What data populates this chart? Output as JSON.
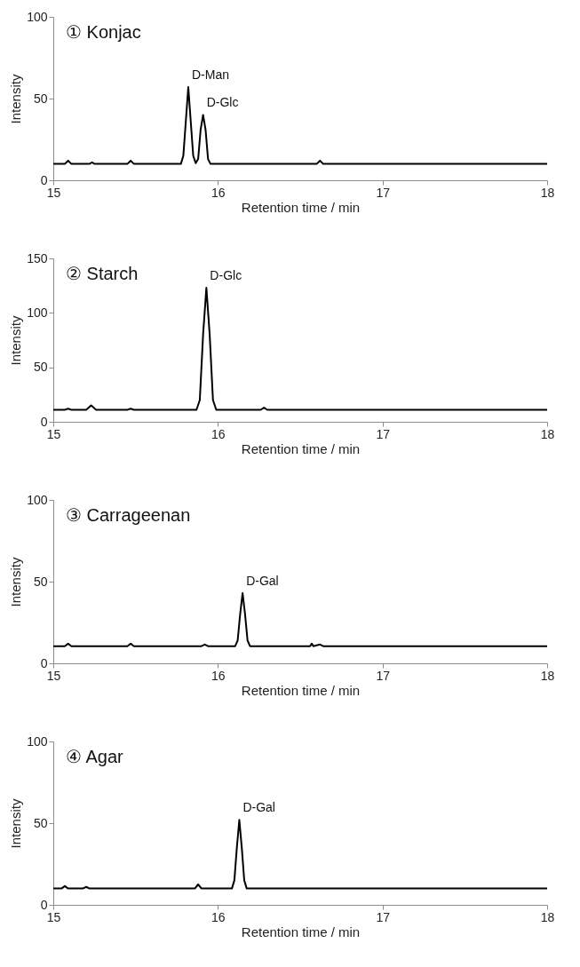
{
  "chart_data": [
    {
      "type": "line",
      "title": "① Konjac",
      "xlabel": "Retention time / min",
      "ylabel": "Intensity",
      "xlim": [
        15,
        18
      ],
      "xticks": [
        15,
        16,
        17,
        18
      ],
      "ylim": [
        0,
        100
      ],
      "yticks": [
        0,
        50,
        100
      ],
      "grid": false,
      "annotations": [
        {
          "text": "D-Man",
          "x": 15.82,
          "y": 57
        },
        {
          "text": "D-Glc",
          "x": 15.91,
          "y": 40
        }
      ],
      "series": [
        {
          "color": "#000000",
          "x": [
            15,
            15.07,
            15.09,
            15.11,
            15.22,
            15.235,
            15.25,
            15.45,
            15.47,
            15.49,
            15.775,
            15.79,
            15.805,
            15.82,
            15.835,
            15.85,
            15.865,
            15.88,
            15.895,
            15.91,
            15.925,
            15.94,
            15.955,
            16.6,
            16.62,
            16.64,
            18
          ],
          "values": [
            10,
            10,
            12,
            10,
            10,
            11,
            10,
            10,
            12,
            10,
            10,
            15,
            36,
            57,
            36,
            15,
            10.5,
            13,
            31,
            40,
            31,
            13,
            10,
            10,
            12,
            10,
            10
          ]
        }
      ]
    },
    {
      "type": "line",
      "title": "② Starch",
      "xlabel": "Retention time / min",
      "ylabel": "Intensity",
      "xlim": [
        15,
        18
      ],
      "xticks": [
        15,
        16,
        17,
        18
      ],
      "ylim": [
        0,
        150
      ],
      "yticks": [
        0,
        50,
        100,
        150
      ],
      "grid": false,
      "annotations": [
        {
          "text": "D-Glc",
          "x": 15.93,
          "y": 123
        }
      ],
      "series": [
        {
          "color": "#000000",
          "x": [
            15,
            15.07,
            15.09,
            15.11,
            15.2,
            15.23,
            15.26,
            15.45,
            15.47,
            15.49,
            15.87,
            15.89,
            15.91,
            15.93,
            15.95,
            15.97,
            15.99,
            16.26,
            16.28,
            16.3,
            18
          ],
          "values": [
            11,
            11,
            12,
            11,
            11,
            15,
            11,
            11,
            12,
            11,
            11,
            20,
            80,
            123,
            80,
            20,
            11,
            11,
            13,
            11,
            11
          ]
        }
      ]
    },
    {
      "type": "line",
      "title": "③ Carrageenan",
      "xlabel": "Retention time / min",
      "ylabel": "Intensity",
      "xlim": [
        15,
        18
      ],
      "xticks": [
        15,
        16,
        17,
        18
      ],
      "ylim": [
        0,
        100
      ],
      "yticks": [
        0,
        50,
        100
      ],
      "grid": false,
      "annotations": [
        {
          "text": "D-Gal",
          "x": 16.15,
          "y": 43
        }
      ],
      "series": [
        {
          "color": "#000000",
          "x": [
            15,
            15.07,
            15.09,
            15.11,
            15.45,
            15.47,
            15.49,
            15.9,
            15.92,
            15.94,
            16.105,
            16.12,
            16.135,
            16.15,
            16.165,
            16.18,
            16.195,
            16.56,
            16.57,
            16.58,
            16.62,
            16.64,
            18
          ],
          "values": [
            10.5,
            10.5,
            12,
            10.5,
            10.5,
            12,
            10.5,
            10.5,
            11.5,
            10.5,
            10.5,
            14,
            30,
            43,
            30,
            14,
            10.5,
            10.5,
            12,
            10.5,
            11.5,
            10.5,
            10.5
          ]
        }
      ]
    },
    {
      "type": "line",
      "title": "④ Agar",
      "xlabel": "Retention time / min",
      "ylabel": "Intensity",
      "xlim": [
        15,
        18
      ],
      "xticks": [
        15,
        16,
        17,
        18
      ],
      "ylim": [
        0,
        100
      ],
      "yticks": [
        0,
        50,
        100
      ],
      "grid": false,
      "annotations": [
        {
          "text": "D-Gal",
          "x": 16.13,
          "y": 52
        }
      ],
      "series": [
        {
          "color": "#000000",
          "x": [
            15,
            15.05,
            15.07,
            15.09,
            15.18,
            15.2,
            15.22,
            15.86,
            15.88,
            15.9,
            16.085,
            16.1,
            16.115,
            16.13,
            16.145,
            16.16,
            16.175,
            18
          ],
          "values": [
            10,
            10,
            11.5,
            10,
            10,
            11,
            10,
            10,
            12.5,
            10,
            10,
            15,
            35,
            52,
            35,
            15,
            10,
            10
          ]
        }
      ]
    }
  ]
}
